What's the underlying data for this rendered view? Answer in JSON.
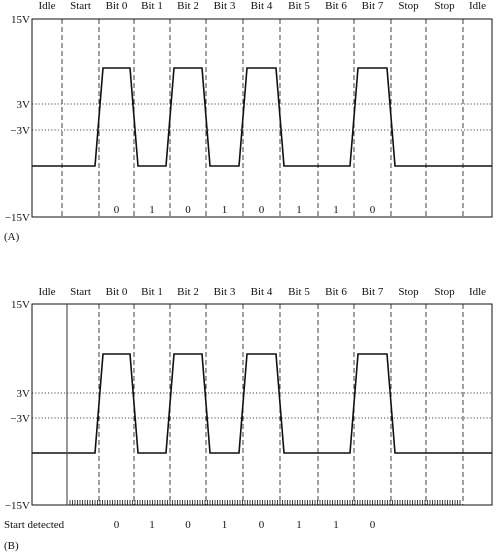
{
  "panel_a": {
    "panel_label": "(A)",
    "slot_labels": [
      "Idle",
      "Start",
      "Bit 0",
      "Bit 1",
      "Bit 2",
      "Bit 3",
      "Bit 4",
      "Bit 5",
      "Bit 6",
      "Bit 7",
      "Stop",
      "Stop",
      "Idle"
    ],
    "voltage_labels": {
      "top": "15V",
      "upper_threshold": "3V",
      "lower_threshold": "−3V",
      "bottom": "−15V"
    },
    "bit_values": [
      "0",
      "1",
      "0",
      "1",
      "0",
      "1",
      "1",
      "0"
    ]
  },
  "panel_b": {
    "panel_label": "(B)",
    "slot_labels": [
      "Idle",
      "Start",
      "Bit 0",
      "Bit 1",
      "Bit 2",
      "Bit 3",
      "Bit 4",
      "Bit 5",
      "Bit 6",
      "Bit 7",
      "Stop",
      "Stop",
      "Idle"
    ],
    "voltage_labels": {
      "top": "15V",
      "upper_threshold": "3V",
      "lower_threshold": "−3V",
      "bottom": "−15V"
    },
    "start_detected_label": "Start detected",
    "bit_values": [
      "0",
      "1",
      "0",
      "1",
      "0",
      "1",
      "1",
      "0"
    ]
  },
  "waveform": {
    "levels": [
      "low",
      "high",
      "low",
      "high",
      "low",
      "high",
      "low",
      "low",
      "high",
      "low",
      "low",
      "low"
    ],
    "high_voltage": 10,
    "low_voltage": -10
  }
}
